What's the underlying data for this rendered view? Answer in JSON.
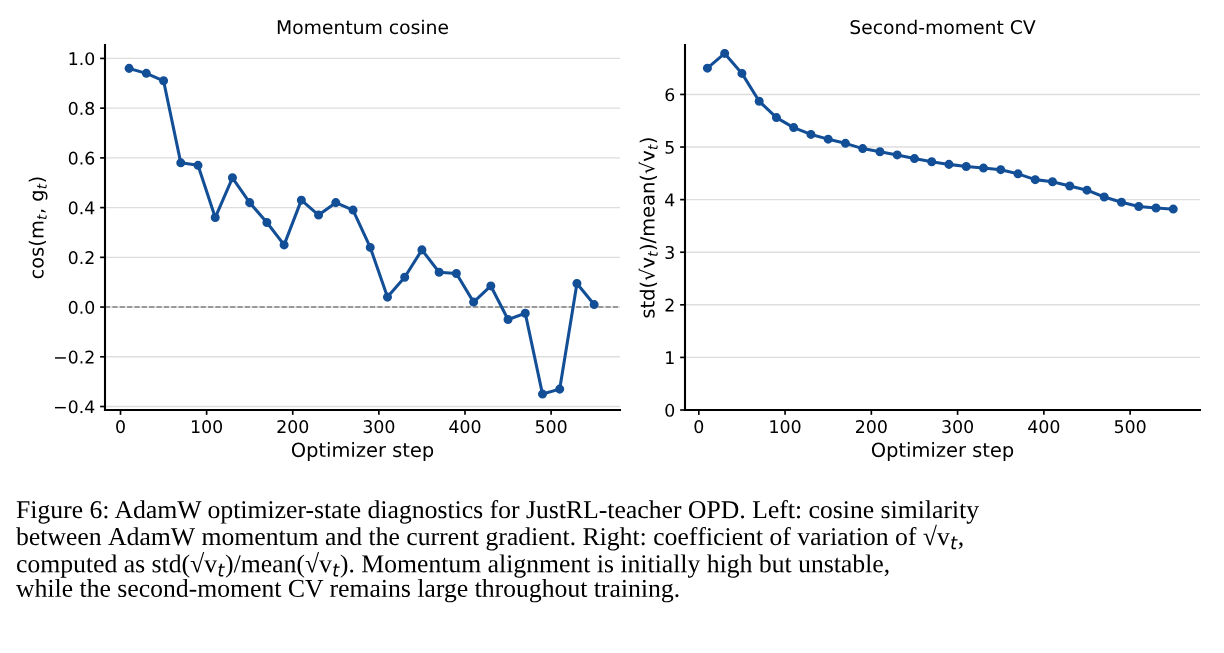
{
  "chart_data": [
    {
      "type": "line",
      "title": "Momentum cosine",
      "xlabel": "Optimizer step",
      "ylabel": "cos(m$_{t}$, g$_{t}$)",
      "x": [
        10,
        30,
        50,
        70,
        90,
        110,
        130,
        150,
        170,
        190,
        210,
        230,
        250,
        270,
        290,
        310,
        330,
        350,
        370,
        390,
        410,
        430,
        450,
        470,
        490,
        510,
        530,
        550
      ],
      "series": [
        {
          "color": "#134f97",
          "values": [
            0.96,
            0.94,
            0.91,
            0.58,
            0.57,
            0.36,
            0.52,
            0.42,
            0.34,
            0.25,
            0.43,
            0.37,
            0.42,
            0.39,
            0.24,
            0.04,
            0.12,
            0.23,
            0.14,
            0.135,
            0.02,
            0.085,
            -0.05,
            -0.025,
            -0.35,
            -0.33,
            0.095,
            0.01
          ]
        }
      ],
      "xlim": [
        -18,
        580
      ],
      "xticks": [
        0,
        100,
        200,
        300,
        400,
        500
      ],
      "ylim": [
        -0.414,
        1.054
      ],
      "yticks": [
        {
          "value": -0.4,
          "label": "−0.4"
        },
        {
          "value": -0.2,
          "label": "−0.2"
        },
        {
          "value": 0,
          "label": "0.0"
        },
        {
          "value": 0.2,
          "label": "0.2"
        },
        {
          "value": 0.4,
          "label": "0.4"
        },
        {
          "value": 0.6,
          "label": "0.6"
        },
        {
          "value": 0.8,
          "label": "0.8"
        },
        {
          "value": 1.0,
          "label": "1.0"
        }
      ],
      "ref_lines": [
        {
          "axis": "y",
          "value": 0,
          "color": "#808080",
          "line_style": "dashed"
        }
      ],
      "grid": "y",
      "marker": "circle",
      "line_style": "solid"
    },
    {
      "type": "line",
      "title": "Second-moment CV",
      "xlabel": "Optimizer step",
      "ylabel": "std(√v$_{t}$)/mean(√v$_{t}$)",
      "x": [
        10,
        30,
        50,
        70,
        90,
        110,
        130,
        150,
        170,
        190,
        210,
        230,
        250,
        270,
        290,
        310,
        330,
        350,
        370,
        390,
        410,
        430,
        450,
        470,
        490,
        510,
        530,
        550
      ],
      "series": [
        {
          "color": "#134f97",
          "values": [
            6.5,
            6.78,
            6.4,
            5.87,
            5.56,
            5.37,
            5.24,
            5.15,
            5.07,
            4.97,
            4.91,
            4.85,
            4.78,
            4.72,
            4.67,
            4.63,
            4.6,
            4.57,
            4.49,
            4.38,
            4.34,
            4.26,
            4.18,
            4.05,
            3.95,
            3.87,
            3.84,
            3.82
          ]
        }
      ],
      "xlim": [
        -16,
        581
      ],
      "xticks": [
        0,
        100,
        200,
        300,
        400,
        500
      ],
      "ylim": [
        0,
        6.94
      ],
      "yticks": [
        0,
        1,
        2,
        3,
        4,
        5,
        6
      ],
      "annotations": [
        "Figure 6: AdamW optimizer-state diagnostics for JustRL-teacher OPD. Left: cosine similarity\nbetween AdamW momentum and the current gradient. Right: coefficient of variation of √v$_{t}$,\ncomputed as std(√v$_{t}$)/mean(√v$_{t}$). Momentum alignment is initially high but unstable,\nwhile the second-moment CV remains large throughout training."
      ],
      "grid": "y",
      "marker": "circle",
      "line_style": "solid"
    }
  ]
}
